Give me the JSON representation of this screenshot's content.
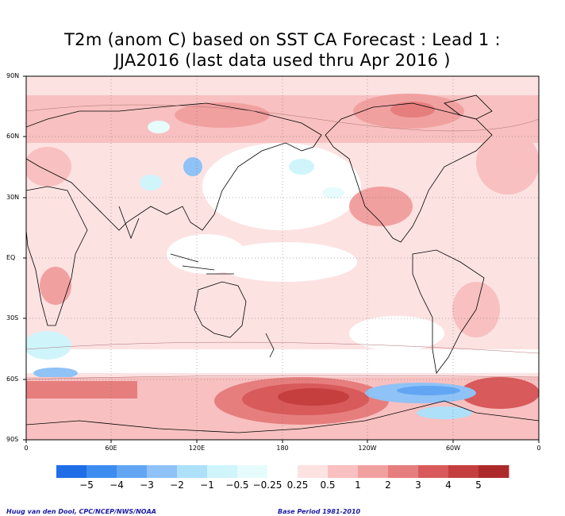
{
  "title_line1": "T2m (anom C) based on SST CA Forecast : Lead 1 :",
  "title_line2": "JJA2016 (last data used thru Apr 2016 )",
  "lat_labels": [
    "90N",
    "60N",
    "30N",
    "EQ",
    "30S",
    "60S",
    "90S"
  ],
  "lon_labels": [
    "0",
    "60E",
    "120E",
    "180",
    "120W",
    "60W",
    "0"
  ],
  "colorbar": {
    "labels": [
      "−5",
      "−4",
      "−3",
      "−2",
      "−1",
      "−0.5",
      "−0.25",
      "0.25",
      "0.5",
      "1",
      "2",
      "3",
      "4",
      "5"
    ],
    "colors": [
      "#1f6ee8",
      "#3d8df0",
      "#62a6f3",
      "#8fc2f6",
      "#aee0fa",
      "#cff5fb",
      "#e6fbfc",
      "#ffffff",
      "#fde2e2",
      "#f8c0c0",
      "#f1a0a0",
      "#e67e7e",
      "#d85a5a",
      "#c53f3f",
      "#ad2a2a"
    ]
  },
  "footer_left": "Huug van den Dool, CPC/NCEP/NWS/NOAA",
  "footer_right": "Base Period 1981-2010"
}
